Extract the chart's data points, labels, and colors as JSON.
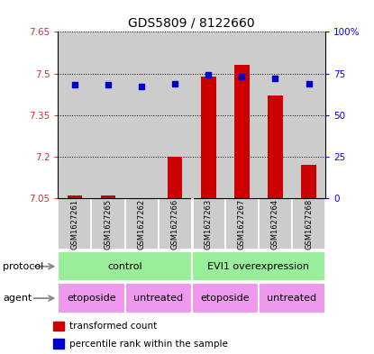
{
  "title": "GDS5809 / 8122660",
  "samples": [
    "GSM1627261",
    "GSM1627265",
    "GSM1627262",
    "GSM1627266",
    "GSM1627263",
    "GSM1627267",
    "GSM1627264",
    "GSM1627268"
  ],
  "transformed_counts": [
    7.06,
    7.06,
    7.05,
    7.2,
    7.49,
    7.53,
    7.42,
    7.17
  ],
  "percentile_ranks": [
    68,
    68,
    67,
    69,
    74,
    73,
    72,
    69
  ],
  "ylim_left": [
    7.05,
    7.65
  ],
  "ylim_right": [
    0,
    100
  ],
  "yticks_left": [
    7.05,
    7.2,
    7.35,
    7.5,
    7.65
  ],
  "yticks_right": [
    0,
    25,
    50,
    75,
    100
  ],
  "ytick_labels_left": [
    "7.05",
    "7.2",
    "7.35",
    "7.5",
    "7.65"
  ],
  "ytick_labels_right": [
    "0",
    "25",
    "50",
    "75",
    "100%"
  ],
  "bar_color": "#cc0000",
  "dot_color": "#0000cc",
  "bar_bottom": 7.05,
  "protocol_labels": [
    "control",
    "EVI1 overexpression"
  ],
  "protocol_ranges": [
    [
      0,
      4
    ],
    [
      4,
      8
    ]
  ],
  "protocol_color": "#99ee99",
  "agent_labels": [
    "etoposide",
    "untreated",
    "etoposide",
    "untreated"
  ],
  "agent_ranges": [
    [
      0,
      2
    ],
    [
      2,
      4
    ],
    [
      4,
      6
    ],
    [
      6,
      8
    ]
  ],
  "agent_color": "#ee99ee",
  "row_label_protocol": "protocol",
  "row_label_agent": "agent",
  "legend_red_label": "transformed count",
  "legend_blue_label": "percentile rank within the sample",
  "bar_width": 0.45,
  "sample_col_color": "#cccccc",
  "sample_col_color_alt": "#bbbbbb",
  "bg_color": "#ffffff"
}
